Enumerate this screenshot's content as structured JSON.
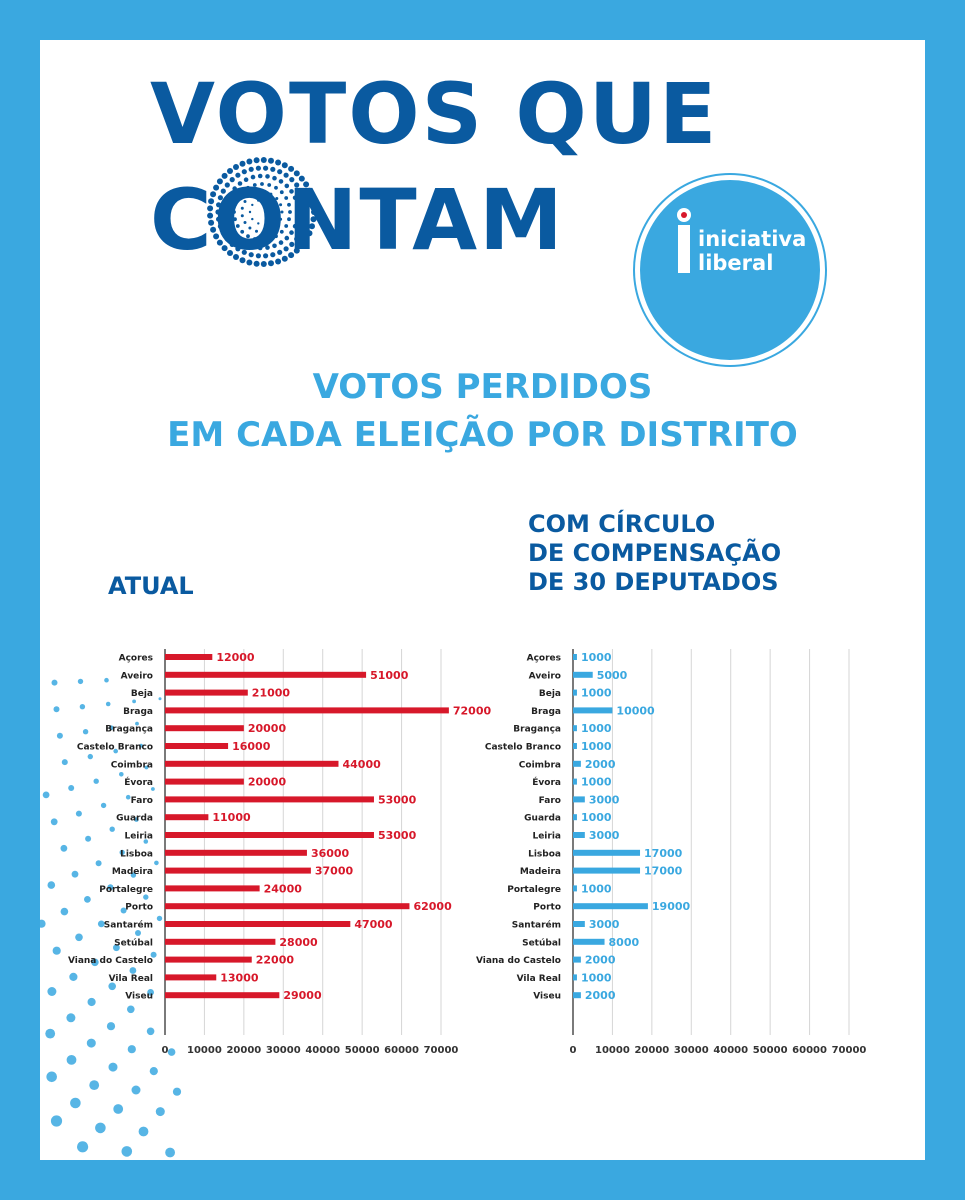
{
  "poster": {
    "title_line1": "VOTOS QUE",
    "title_line2": "CONTAM",
    "subtitle_line1": "VOTOS PERDIDOS",
    "subtitle_line2": "EM CADA ELEIÇÃO POR DISTRITO",
    "logo_line1": "iniciativa",
    "logo_line2": "liberal"
  },
  "colors": {
    "frame": "#3aa8e0",
    "title": "#0a5aa0",
    "atual_bar": "#d7182a",
    "compensacao_bar": "#3aa8e0"
  },
  "chart_data": [
    {
      "type": "bar",
      "orientation": "horizontal",
      "title": "ATUAL",
      "categories": [
        "Açores",
        "Aveiro",
        "Beja",
        "Braga",
        "Bragança",
        "Castelo Branco",
        "Coimbra",
        "Évora",
        "Faro",
        "Guarda",
        "Leiria",
        "Lisboa",
        "Madeira",
        "Portalegre",
        "Porto",
        "Santarém",
        "Setúbal",
        "Viana do Castelo",
        "Vila Real",
        "Viseu"
      ],
      "values": [
        12000,
        51000,
        21000,
        72000,
        20000,
        16000,
        44000,
        20000,
        53000,
        11000,
        53000,
        36000,
        37000,
        24000,
        62000,
        47000,
        28000,
        22000,
        13000,
        29000
      ],
      "xlim": [
        0,
        70000
      ],
      "xticks": [
        0,
        10000,
        20000,
        30000,
        40000,
        50000,
        60000,
        70000
      ],
      "grid": true,
      "data_labels": true,
      "color": "#d7182a"
    },
    {
      "type": "bar",
      "orientation": "horizontal",
      "title": "COM CÍRCULO DE COMPENSAÇÃO DE 30 DEPUTADOS",
      "title_lines": [
        "COM CÍRCULO",
        "DE COMPENSAÇÃO",
        "DE 30 DEPUTADOS"
      ],
      "categories": [
        "Açores",
        "Aveiro",
        "Beja",
        "Braga",
        "Bragança",
        "Castelo Branco",
        "Coimbra",
        "Évora",
        "Faro",
        "Guarda",
        "Leiria",
        "Lisboa",
        "Madeira",
        "Portalegre",
        "Porto",
        "Santarém",
        "Setúbal",
        "Viana do Castelo",
        "Vila Real",
        "Viseu"
      ],
      "values": [
        1000,
        5000,
        1000,
        10000,
        1000,
        1000,
        2000,
        1000,
        3000,
        1000,
        3000,
        17000,
        17000,
        1000,
        19000,
        3000,
        8000,
        2000,
        1000,
        2000
      ],
      "xlim": [
        0,
        70000
      ],
      "xticks": [
        0,
        10000,
        20000,
        30000,
        40000,
        50000,
        60000,
        70000
      ],
      "grid": true,
      "data_labels": true,
      "color": "#3aa8e0"
    }
  ]
}
